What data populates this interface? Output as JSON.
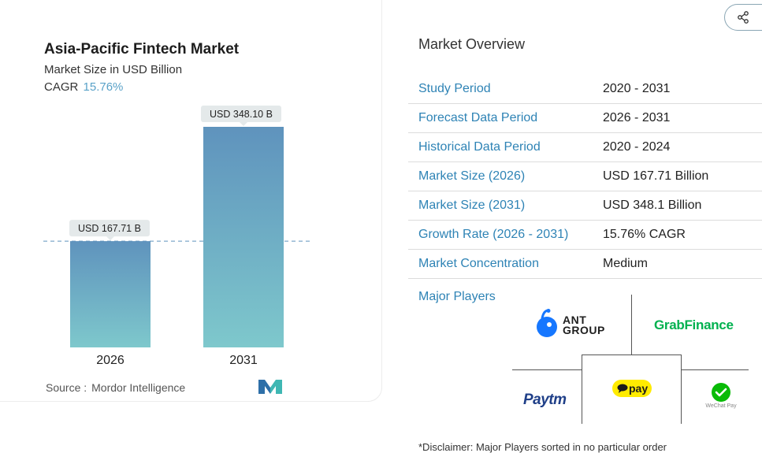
{
  "chart_data": {
    "type": "bar",
    "title": "Asia-Pacific Fintech Market",
    "subtitle": "Market Size in USD Billion",
    "cagr_label": "CAGR",
    "cagr_value": "15.76%",
    "categories": [
      "2026",
      "2031"
    ],
    "values": [
      167.71,
      348.1
    ],
    "data_labels": [
      "USD 167.71 B",
      "USD 348.10 B"
    ],
    "ylim": [
      0,
      348.1
    ],
    "reference_line": 167.71,
    "colors": {
      "bar_top": "#5f93bd",
      "bar_bottom": "#7ec8cc",
      "label_bg": "#e4e9ea",
      "ref_line": "#5f93bd"
    }
  },
  "source": {
    "label": "Source :",
    "name": "Mordor Intelligence"
  },
  "overview": {
    "title": "Market Overview",
    "rows": [
      {
        "label": "Study Period",
        "value": "2020 - 2031"
      },
      {
        "label": "Forecast Data Period",
        "value": "2026 - 2031"
      },
      {
        "label": "Historical Data Period",
        "value": "2020 - 2024"
      },
      {
        "label": "Market Size (2026)",
        "value": "USD 167.71 Billion"
      },
      {
        "label": "Market Size (2031)",
        "value": "USD 348.1 Billion"
      },
      {
        "label": "Growth Rate (2026 - 2031)",
        "value": "15.76% CAGR"
      },
      {
        "label": "Market Concentration",
        "value": "Medium"
      }
    ]
  },
  "players": {
    "label": "Major Players",
    "logos": [
      {
        "name": "ANT GROUP",
        "line1": "ANT",
        "line2": "GROUP"
      },
      {
        "name": "GrabFinance"
      },
      {
        "name": "Paytm"
      },
      {
        "name": "Kakao Pay",
        "text": "pay"
      },
      {
        "name": "WeChat Pay",
        "text": "WeChat Pay"
      }
    ]
  },
  "disclaimer": "*Disclaimer: Major Players sorted in no particular order",
  "accent_colors": {
    "link": "#2e83b5",
    "cagr": "#5aa2c8"
  }
}
